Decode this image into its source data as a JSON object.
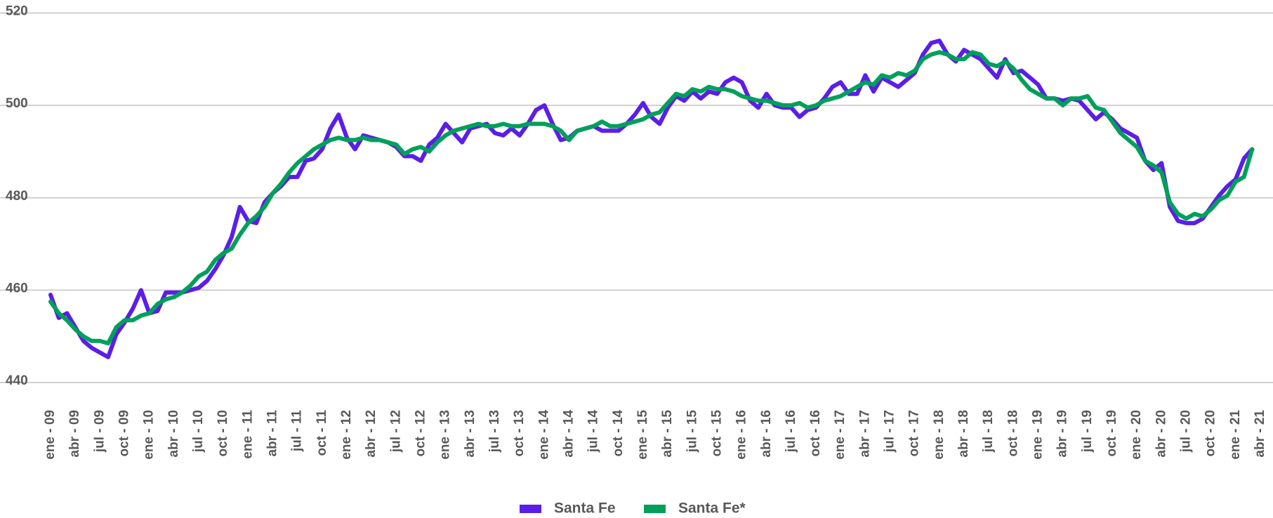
{
  "chart_data": {
    "type": "line",
    "categories": [
      "ene - 09",
      null,
      null,
      "abr - 09",
      null,
      null,
      "jul - 09",
      null,
      null,
      "oct - 09",
      null,
      null,
      "ene - 10",
      null,
      null,
      "abr - 10",
      null,
      null,
      "jul - 10",
      null,
      null,
      "oct - 10",
      null,
      null,
      "ene - 11",
      null,
      null,
      "abr - 11",
      null,
      null,
      "jul - 11",
      null,
      null,
      "oct - 11",
      null,
      null,
      "ene - 12",
      null,
      null,
      "abr - 12",
      null,
      null,
      "jul - 12",
      null,
      null,
      "oct - 12",
      null,
      null,
      "ene - 13",
      null,
      null,
      "abr - 13",
      null,
      null,
      "jul - 13",
      null,
      null,
      "oct - 13",
      null,
      null,
      "ene - 14",
      null,
      null,
      "abr - 14",
      null,
      null,
      "jul - 14",
      null,
      null,
      "oct - 14",
      null,
      null,
      "ene - 15",
      null,
      null,
      "abr - 15",
      null,
      null,
      "jul - 15",
      null,
      null,
      "oct - 15",
      null,
      null,
      "ene - 16",
      null,
      null,
      "abr - 16",
      null,
      null,
      "jul - 16",
      null,
      null,
      "oct - 16",
      null,
      null,
      "ene - 17",
      null,
      null,
      "abr - 17",
      null,
      null,
      "jul - 17",
      null,
      null,
      "oct - 17",
      null,
      null,
      "ene - 18",
      null,
      null,
      "abr - 18",
      null,
      null,
      "jul - 18",
      null,
      null,
      "oct - 18",
      null,
      null,
      "ene - 19",
      null,
      null,
      "abr - 19",
      null,
      null,
      "jul - 19",
      null,
      null,
      "oct - 19",
      null,
      null,
      "ene - 20",
      null,
      null,
      "abr - 20",
      null,
      null,
      "jul - 20",
      null,
      null,
      "oct - 20",
      null,
      null,
      "ene - 21",
      null,
      null,
      "abr - 21"
    ],
    "series": [
      {
        "name": "Santa Fe",
        "color": "#5b1ee8",
        "values": [
          459,
          454,
          455,
          452,
          449,
          447.5,
          446.5,
          445.5,
          450.5,
          453,
          456,
          460,
          455,
          455.5,
          459.5,
          459.5,
          459.5,
          460,
          460.5,
          462,
          464.5,
          467.5,
          471.5,
          478,
          475,
          474.5,
          479,
          481,
          482.5,
          484.5,
          484.5,
          488,
          488.5,
          490.5,
          495,
          498,
          493,
          490.5,
          493.5,
          493,
          492.5,
          492,
          491,
          489,
          489,
          488,
          491.5,
          493,
          496,
          494,
          492,
          495,
          495.5,
          496,
          494,
          493.5,
          495,
          493.5,
          496,
          499,
          500,
          496,
          492.5,
          493,
          494.5,
          495,
          495.5,
          494.5,
          494.5,
          494.5,
          496,
          498,
          500.5,
          497.5,
          496,
          499.5,
          502,
          501,
          503,
          501.5,
          503,
          502.5,
          505,
          506,
          505,
          501,
          499.5,
          502.5,
          500,
          499.5,
          499.5,
          497.5,
          499,
          499.5,
          501.5,
          504,
          505,
          502.5,
          502.5,
          506.5,
          503,
          506,
          505,
          504,
          505.5,
          507,
          511,
          513.5,
          514,
          511,
          509.5,
          512,
          511,
          510,
          508,
          506,
          510,
          507,
          507.5,
          506,
          504.5,
          501.5,
          501.5,
          501,
          501.5,
          501,
          499,
          497,
          498.5,
          497,
          495,
          494,
          493,
          488,
          486,
          487.5,
          478,
          475,
          474.5,
          474.5,
          475.5,
          478,
          480.5,
          482.5,
          484,
          488.5,
          490.5,
          null
        ]
      },
      {
        "name": "Santa Fe*",
        "color": "#00a05a",
        "values": [
          457.5,
          455,
          453.5,
          451.5,
          450,
          449,
          449,
          448.5,
          452,
          453.5,
          453.5,
          454.5,
          455,
          457,
          458,
          458.5,
          459.5,
          461,
          463,
          464,
          466.5,
          468,
          469,
          472,
          474.5,
          476,
          478,
          481,
          483,
          485.5,
          487.5,
          489,
          490.5,
          491.5,
          492.5,
          493,
          492.5,
          492.5,
          493,
          492.5,
          492.5,
          492,
          491.5,
          489.5,
          490.5,
          491,
          490,
          492,
          493.5,
          494.5,
          495,
          495.5,
          496,
          495.5,
          495.5,
          496,
          495.5,
          495.5,
          496,
          496,
          496,
          495.5,
          494.5,
          492.5,
          494.5,
          495,
          495.5,
          496.5,
          495.5,
          495.5,
          496,
          496.5,
          497,
          498,
          498.5,
          500.5,
          502.5,
          502,
          503.5,
          503,
          504,
          503.5,
          503.5,
          503,
          502,
          501.5,
          501,
          501,
          500.5,
          500,
          500,
          500.5,
          499.5,
          500,
          501,
          501.5,
          502,
          503,
          504,
          505,
          504.5,
          506.5,
          506,
          507,
          506.5,
          507.5,
          510,
          511,
          511.5,
          511,
          510,
          510,
          511.5,
          511,
          509,
          508.5,
          509.5,
          508,
          505.5,
          503.5,
          502.5,
          501.5,
          501.5,
          500,
          501.5,
          501.5,
          502,
          499.5,
          499,
          496.5,
          494,
          492.5,
          491,
          488,
          487,
          485.5,
          479,
          476.5,
          475.5,
          476.5,
          476,
          477.5,
          479.5,
          480.5,
          483.5,
          484.5,
          490.5,
          null
        ]
      }
    ],
    "ylim": [
      440,
      520
    ],
    "yticks": [
      440,
      460,
      480,
      500,
      520
    ],
    "grid": true,
    "legend": "bottom"
  }
}
